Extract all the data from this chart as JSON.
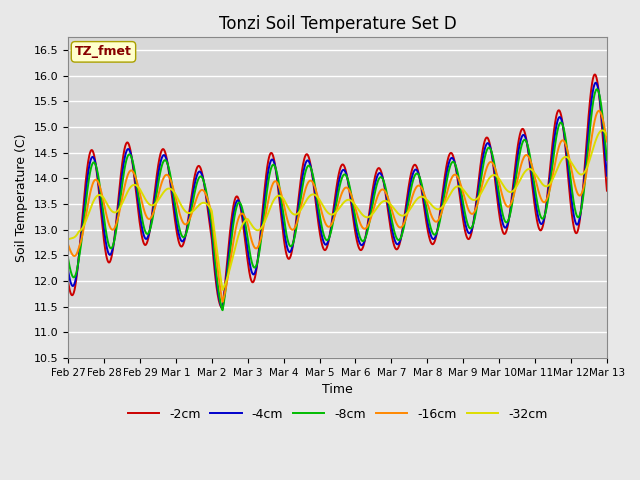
{
  "title": "Tonzi Soil Temperature Set D",
  "xlabel": "Time",
  "ylabel": "Soil Temperature (C)",
  "ylim": [
    10.5,
    16.75
  ],
  "xlim": [
    0,
    15
  ],
  "xtick_labels": [
    "Feb 27",
    "Feb 28",
    "Feb 29",
    "Mar 1",
    "Mar 2",
    "Mar 3",
    "Mar 4",
    "Mar 5",
    "Mar 6",
    "Mar 7",
    "Mar 8",
    "Mar 9",
    "Mar 10",
    "Mar 11",
    "Mar 12",
    "Mar 13"
  ],
  "legend_labels": [
    "-2cm",
    "-4cm",
    "-8cm",
    "-16cm",
    "-32cm"
  ],
  "line_colors": [
    "#cc0000",
    "#0000cc",
    "#00bb00",
    "#ff8800",
    "#dddd00"
  ],
  "background_color": "#e8e8e8",
  "plot_bg_color": "#d8d8d8",
  "annotation_text": "TZ_fmet",
  "annotation_color": "#880000",
  "annotation_bg": "#ffffcc",
  "title_fontsize": 12,
  "axis_label_fontsize": 9,
  "tick_fontsize": 8,
  "xtick_fontsize": 7.5
}
